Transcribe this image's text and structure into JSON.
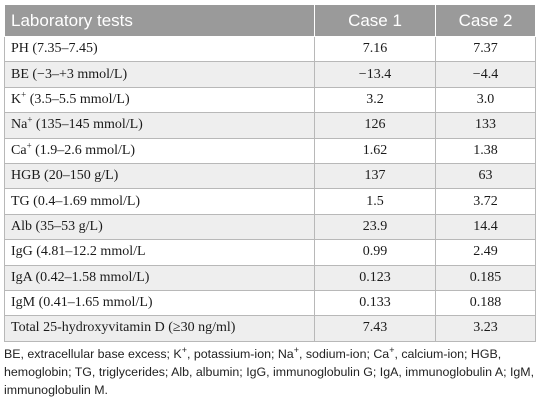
{
  "table": {
    "headers": [
      "Laboratory tests",
      "Case 1",
      "Case 2"
    ],
    "rows": [
      {
        "test": "PH (7.35–7.45)",
        "case1": "7.16",
        "case2": "7.37"
      },
      {
        "test": "BE (−3–+3 mmol/L)",
        "case1": "−13.4",
        "case2": "−4.4"
      },
      {
        "test_prefix": "K",
        "test_sup": "+",
        "test": " (3.5–5.5 mmol/L)",
        "case1": "3.2",
        "case2": "3.0"
      },
      {
        "test_prefix": "Na",
        "test_sup": "+",
        "test": " (135–145 mmol/L)",
        "case1": "126",
        "case2": "133"
      },
      {
        "test_prefix": "Ca",
        "test_sup": "+",
        "test": " (1.9–2.6 mmol/L)",
        "case1": "1.62",
        "case2": "1.38"
      },
      {
        "test": "HGB (20–150 g/L)",
        "case1": "137",
        "case2": "63"
      },
      {
        "test": "TG (0.4–1.69 mmol/L)",
        "case1": "1.5",
        "case2": "3.72"
      },
      {
        "test": "Alb (35–53 g/L)",
        "case1": "23.9",
        "case2": "14.4"
      },
      {
        "test": "IgG (4.81–12.2 mmol/L",
        "case1": "0.99",
        "case2": "2.49"
      },
      {
        "test": "IgA (0.42–1.58 mmol/L)",
        "case1": "0.123",
        "case2": "0.185"
      },
      {
        "test": "IgM (0.41–1.65 mmol/L)",
        "case1": "0.133",
        "case2": "0.188"
      },
      {
        "test": "Total 25-hydroxyvitamin D (≥30 ng/ml)",
        "case1": "7.43",
        "case2": "3.23"
      }
    ]
  },
  "footnote": {
    "p1": "BE, extracellular base excess; K",
    "s1": "+",
    "p2": ", potassium-ion; Na",
    "s2": "+",
    "p3": ", sodium-ion; Ca",
    "s3": "+",
    "p4": ", calcium-ion; HGB, hemoglobin; TG, triglycerides; Alb, albumin; IgG, immunoglobulin G; IgA, immunoglobulin A; IgM, immunoglobulin M."
  }
}
